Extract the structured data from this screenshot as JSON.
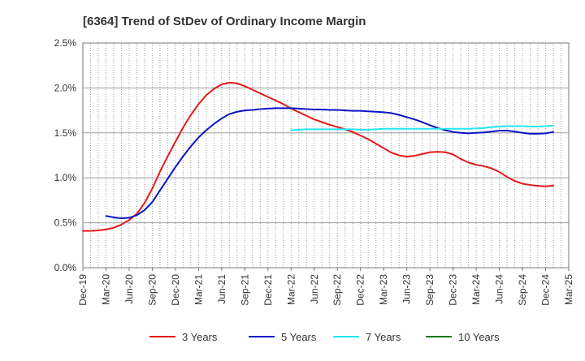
{
  "chart_data": {
    "type": "line",
    "title": "[6364]  Trend of StDev of Ordinary Income Margin",
    "xlabel": "",
    "ylabel": "",
    "ylim": [
      0,
      2.5
    ],
    "y_ticks": [
      "0.0%",
      "0.5%",
      "1.0%",
      "1.5%",
      "2.0%",
      "2.5%"
    ],
    "x_ticks": [
      "Dec-19",
      "Mar-20",
      "Jun-20",
      "Sep-20",
      "Dec-20",
      "Mar-21",
      "Jun-21",
      "Sep-21",
      "Dec-21",
      "Mar-22",
      "Jun-22",
      "Sep-22",
      "Dec-22",
      "Mar-23",
      "Jun-23",
      "Sep-23",
      "Dec-23",
      "Mar-24",
      "Jun-24",
      "Sep-24",
      "Dec-24",
      "Mar-25"
    ],
    "grid": "vertical dotted, horizontal solid",
    "legend_position": "bottom",
    "series": [
      {
        "name": "3 Years",
        "color": "#e31a1c",
        "points": [
          [
            "Dec-19",
            0.41
          ],
          [
            "Jan-20",
            0.41
          ],
          [
            "Feb-20",
            0.415
          ],
          [
            "Mar-20",
            0.425
          ],
          [
            "Apr-20",
            0.445
          ],
          [
            "May-20",
            0.48
          ],
          [
            "Jun-20",
            0.53
          ],
          [
            "Jul-20",
            0.6
          ],
          [
            "Aug-20",
            0.72
          ],
          [
            "Sep-20",
            0.88
          ],
          [
            "Oct-20",
            1.07
          ],
          [
            "Nov-20",
            1.24
          ],
          [
            "Dec-20",
            1.4
          ],
          [
            "Jan-21",
            1.56
          ],
          [
            "Feb-21",
            1.7
          ],
          [
            "Mar-21",
            1.82
          ],
          [
            "Apr-21",
            1.92
          ],
          [
            "May-21",
            1.99
          ],
          [
            "Jun-21",
            2.04
          ],
          [
            "Jul-21",
            2.06
          ],
          [
            "Aug-21",
            2.05
          ],
          [
            "Sep-21",
            2.02
          ],
          [
            "Oct-21",
            1.98
          ],
          [
            "Nov-21",
            1.94
          ],
          [
            "Dec-21",
            1.9
          ],
          [
            "Jan-22",
            1.86
          ],
          [
            "Feb-22",
            1.82
          ],
          [
            "Mar-22",
            1.77
          ],
          [
            "Apr-22",
            1.73
          ],
          [
            "May-22",
            1.69
          ],
          [
            "Jun-22",
            1.65
          ],
          [
            "Jul-22",
            1.62
          ],
          [
            "Aug-22",
            1.59
          ],
          [
            "Sep-22",
            1.565
          ],
          [
            "Oct-22",
            1.54
          ],
          [
            "Nov-22",
            1.51
          ],
          [
            "Dec-22",
            1.47
          ],
          [
            "Jan-23",
            1.43
          ],
          [
            "Feb-23",
            1.38
          ],
          [
            "Mar-23",
            1.33
          ],
          [
            "Apr-23",
            1.28
          ],
          [
            "May-23",
            1.25
          ],
          [
            "Jun-23",
            1.235
          ],
          [
            "Jul-23",
            1.245
          ],
          [
            "Aug-23",
            1.265
          ],
          [
            "Sep-23",
            1.285
          ],
          [
            "Oct-23",
            1.29
          ],
          [
            "Nov-23",
            1.285
          ],
          [
            "Dec-23",
            1.26
          ],
          [
            "Jan-24",
            1.21
          ],
          [
            "Feb-24",
            1.17
          ],
          [
            "Mar-24",
            1.145
          ],
          [
            "Apr-24",
            1.13
          ],
          [
            "May-24",
            1.105
          ],
          [
            "Jun-24",
            1.065
          ],
          [
            "Jul-24",
            1.01
          ],
          [
            "Aug-24",
            0.965
          ],
          [
            "Sep-24",
            0.935
          ],
          [
            "Oct-24",
            0.92
          ],
          [
            "Nov-24",
            0.91
          ],
          [
            "Dec-24",
            0.905
          ],
          [
            "Jan-25",
            0.915
          ]
        ]
      },
      {
        "name": "5 Years",
        "color": "#0a14c8",
        "points": [
          [
            "Mar-20",
            0.575
          ],
          [
            "Apr-20",
            0.56
          ],
          [
            "May-20",
            0.55
          ],
          [
            "Jun-20",
            0.555
          ],
          [
            "Jul-20",
            0.585
          ],
          [
            "Aug-20",
            0.64
          ],
          [
            "Sep-20",
            0.73
          ],
          [
            "Oct-20",
            0.86
          ],
          [
            "Nov-20",
            0.99
          ],
          [
            "Dec-20",
            1.12
          ],
          [
            "Jan-21",
            1.24
          ],
          [
            "Feb-21",
            1.35
          ],
          [
            "Mar-21",
            1.45
          ],
          [
            "Apr-21",
            1.53
          ],
          [
            "May-21",
            1.6
          ],
          [
            "Jun-21",
            1.66
          ],
          [
            "Jul-21",
            1.71
          ],
          [
            "Aug-21",
            1.735
          ],
          [
            "Sep-21",
            1.75
          ],
          [
            "Oct-21",
            1.755
          ],
          [
            "Nov-21",
            1.765
          ],
          [
            "Dec-21",
            1.77
          ],
          [
            "Jan-22",
            1.775
          ],
          [
            "Feb-22",
            1.775
          ],
          [
            "Mar-22",
            1.775
          ],
          [
            "Apr-22",
            1.77
          ],
          [
            "May-22",
            1.765
          ],
          [
            "Jun-22",
            1.76
          ],
          [
            "Jul-22",
            1.76
          ],
          [
            "Aug-22",
            1.755
          ],
          [
            "Sep-22",
            1.755
          ],
          [
            "Oct-22",
            1.75
          ],
          [
            "Nov-22",
            1.745
          ],
          [
            "Dec-22",
            1.745
          ],
          [
            "Jan-23",
            1.74
          ],
          [
            "Feb-23",
            1.735
          ],
          [
            "Mar-23",
            1.73
          ],
          [
            "Apr-23",
            1.72
          ],
          [
            "May-23",
            1.7
          ],
          [
            "Jun-23",
            1.675
          ],
          [
            "Jul-23",
            1.65
          ],
          [
            "Aug-23",
            1.62
          ],
          [
            "Sep-23",
            1.585
          ],
          [
            "Oct-23",
            1.555
          ],
          [
            "Nov-23",
            1.53
          ],
          [
            "Dec-23",
            1.51
          ],
          [
            "Jan-24",
            1.5
          ],
          [
            "Feb-24",
            1.495
          ],
          [
            "Mar-24",
            1.5
          ],
          [
            "Apr-24",
            1.505
          ],
          [
            "May-24",
            1.515
          ],
          [
            "Jun-24",
            1.525
          ],
          [
            "Jul-24",
            1.525
          ],
          [
            "Aug-24",
            1.515
          ],
          [
            "Sep-24",
            1.5
          ],
          [
            "Oct-24",
            1.49
          ],
          [
            "Nov-24",
            1.49
          ],
          [
            "Dec-24",
            1.495
          ],
          [
            "Jan-25",
            1.51
          ]
        ]
      },
      {
        "name": "7 Years",
        "color": "#22e6f0",
        "points": [
          [
            "Mar-22",
            1.53
          ],
          [
            "Apr-22",
            1.535
          ],
          [
            "May-22",
            1.54
          ],
          [
            "Jun-22",
            1.54
          ],
          [
            "Jul-22",
            1.54
          ],
          [
            "Aug-22",
            1.54
          ],
          [
            "Sep-22",
            1.54
          ],
          [
            "Oct-22",
            1.54
          ],
          [
            "Nov-22",
            1.54
          ],
          [
            "Dec-22",
            1.535
          ],
          [
            "Jan-23",
            1.535
          ],
          [
            "Feb-23",
            1.54
          ],
          [
            "Mar-23",
            1.545
          ],
          [
            "Apr-23",
            1.545
          ],
          [
            "May-23",
            1.545
          ],
          [
            "Jun-23",
            1.545
          ],
          [
            "Jul-23",
            1.545
          ],
          [
            "Aug-23",
            1.545
          ],
          [
            "Sep-23",
            1.545
          ],
          [
            "Oct-23",
            1.545
          ],
          [
            "Nov-23",
            1.545
          ],
          [
            "Dec-23",
            1.545
          ],
          [
            "Jan-24",
            1.545
          ],
          [
            "Feb-24",
            1.545
          ],
          [
            "Mar-24",
            1.55
          ],
          [
            "Apr-24",
            1.555
          ],
          [
            "May-24",
            1.565
          ],
          [
            "Jun-24",
            1.57
          ],
          [
            "Jul-24",
            1.575
          ],
          [
            "Aug-24",
            1.575
          ],
          [
            "Sep-24",
            1.575
          ],
          [
            "Oct-24",
            1.57
          ],
          [
            "Nov-24",
            1.57
          ],
          [
            "Dec-24",
            1.575
          ],
          [
            "Jan-25",
            1.58
          ]
        ]
      },
      {
        "name": "10 Years",
        "color": "#1a7a1a",
        "points": []
      }
    ]
  }
}
